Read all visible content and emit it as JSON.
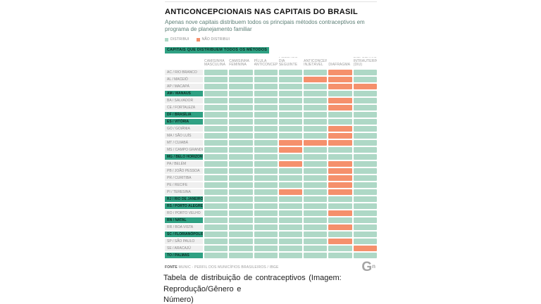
{
  "card": {
    "title": "ANTICONCEPCIONAIS NAS CAPITAIS DO BRASIL",
    "subtitle": "Apenas nove capitais distribuem todos os principais métodos contraceptivos em programa de planejamento familiar",
    "legend": [
      {
        "label": "DISTRIBUI",
        "key": "distribui"
      },
      {
        "label": "NÃO DISTRIBUI",
        "key": "nao_distribui"
      }
    ],
    "banner": "CAPITAIS QUE DISTRIBUEM TODOS OS MÉTODOS",
    "source_label": "FONTE",
    "source_text": " MUNIC - PERFIL DOS MUNICÍPIOS BRASILEIROS / IBGE",
    "logo_letter": "G",
    "logo_sup": "n"
  },
  "caption": {
    "line1": "Tabela de distribuição de contraceptivos (Imagem: Reprodução/Gênero e",
    "line2": "Número)",
    "full": "Tabela de distribuição de contraceptivos (Imagem: Reprodução/Gênero e Número)"
  },
  "colors": {
    "distribui": "#aed8c6",
    "nao_distribui": "#f5906c",
    "highlight": "#2fa183",
    "label_bg": "#efefef"
  },
  "chart_data": {
    "type": "heatmap",
    "title": "ANTICONCEPCIONAIS NAS CAPITAIS DO BRASIL",
    "subtitle": "Apenas nove capitais distribuem todos os principais métodos contraceptivos em programa de planejamento familiar",
    "legend": [
      "DISTRIBUI",
      "NÃO DISTRIBUI"
    ],
    "value_meaning": {
      "1": "distribui",
      "0": "não distribui"
    },
    "highlight_meaning": "CAPITAIS QUE DISTRIBUEM TODOS OS MÉTODOS",
    "columns": [
      "CAMISINHA MASCULINA",
      "CAMISINHA FEMININA",
      "PÍLULA ANTICONCEPCIONAL",
      "PÍLULA DO DIA SEGUINTE",
      "ANTICONCEPCIONAL INJETÁVEL",
      "DIAFRAGMA",
      "DISPOSITIVO INTRAUTERINO (DIU)"
    ],
    "rows": [
      {
        "label": "AC / RIO BRANCO",
        "highlight": false,
        "values": [
          1,
          1,
          1,
          1,
          1,
          0,
          1
        ]
      },
      {
        "label": "AL / MACEIÓ",
        "highlight": false,
        "values": [
          1,
          1,
          1,
          1,
          0,
          0,
          1
        ]
      },
      {
        "label": "AP / MACAPÁ",
        "highlight": false,
        "values": [
          1,
          1,
          1,
          1,
          1,
          0,
          0
        ]
      },
      {
        "label": "AM / MANAUS",
        "highlight": true,
        "values": [
          1,
          1,
          1,
          1,
          1,
          1,
          1
        ]
      },
      {
        "label": "BA / SALVADOR",
        "highlight": false,
        "values": [
          1,
          1,
          1,
          1,
          1,
          0,
          1
        ]
      },
      {
        "label": "CE / FORTALEZA",
        "highlight": false,
        "values": [
          1,
          1,
          1,
          1,
          1,
          0,
          1
        ]
      },
      {
        "label": "DF / BRASÍLIA",
        "highlight": true,
        "values": [
          1,
          1,
          1,
          1,
          1,
          1,
          1
        ]
      },
      {
        "label": "ES / VITÓRIA",
        "highlight": true,
        "values": [
          1,
          1,
          1,
          1,
          1,
          1,
          1
        ]
      },
      {
        "label": "GO / GOIÂNIA",
        "highlight": false,
        "values": [
          1,
          1,
          1,
          1,
          1,
          0,
          1
        ]
      },
      {
        "label": "MA / SÃO LUÍS",
        "highlight": false,
        "values": [
          1,
          1,
          1,
          1,
          1,
          0,
          1
        ]
      },
      {
        "label": "MT / CUIABÁ",
        "highlight": false,
        "values": [
          1,
          1,
          1,
          0,
          0,
          0,
          1
        ]
      },
      {
        "label": "MS / CAMPO GRANDE",
        "highlight": false,
        "values": [
          1,
          1,
          1,
          0,
          1,
          1,
          1
        ]
      },
      {
        "label": "MG / BELO HORIZONTE",
        "highlight": true,
        "values": [
          1,
          1,
          1,
          1,
          1,
          1,
          1
        ]
      },
      {
        "label": "PA / BELÉM",
        "highlight": false,
        "values": [
          1,
          1,
          1,
          0,
          1,
          0,
          1
        ]
      },
      {
        "label": "PB / JOÃO PESSOA",
        "highlight": false,
        "values": [
          1,
          1,
          1,
          1,
          1,
          0,
          1
        ]
      },
      {
        "label": "PR / CURITIBA",
        "highlight": false,
        "values": [
          1,
          1,
          1,
          1,
          1,
          0,
          1
        ]
      },
      {
        "label": "PE / RECIFE",
        "highlight": false,
        "values": [
          1,
          1,
          1,
          1,
          1,
          0,
          1
        ]
      },
      {
        "label": "PI / TERESINA",
        "highlight": false,
        "values": [
          1,
          1,
          1,
          0,
          1,
          0,
          1
        ]
      },
      {
        "label": "RJ / RIO DE JANEIRO",
        "highlight": true,
        "values": [
          1,
          1,
          1,
          1,
          1,
          1,
          1
        ]
      },
      {
        "label": "RS / PORTO ALEGRE",
        "highlight": true,
        "values": [
          1,
          1,
          1,
          1,
          1,
          1,
          1
        ]
      },
      {
        "label": "RO / PORTO VELHO",
        "highlight": false,
        "values": [
          1,
          1,
          1,
          1,
          1,
          0,
          1
        ]
      },
      {
        "label": "RN / NATAL",
        "highlight": true,
        "values": [
          1,
          1,
          1,
          1,
          1,
          1,
          1
        ]
      },
      {
        "label": "RR / BOA VISTA",
        "highlight": false,
        "values": [
          1,
          1,
          1,
          1,
          1,
          0,
          1
        ]
      },
      {
        "label": "SC / FLORIANÓPOLIS",
        "highlight": true,
        "values": [
          1,
          1,
          1,
          1,
          1,
          1,
          1
        ]
      },
      {
        "label": "SP / SÃO PAULO",
        "highlight": false,
        "values": [
          1,
          1,
          1,
          1,
          1,
          0,
          1
        ]
      },
      {
        "label": "SE / ARACAJÚ",
        "highlight": false,
        "values": [
          1,
          1,
          1,
          1,
          1,
          1,
          0
        ]
      },
      {
        "label": "TO / PALMAS",
        "highlight": true,
        "values": [
          1,
          1,
          1,
          1,
          1,
          1,
          1
        ]
      }
    ],
    "source": "FONTE MUNIC - PERFIL DOS MUNICÍPIOS BRASILEIROS / IBGE"
  }
}
